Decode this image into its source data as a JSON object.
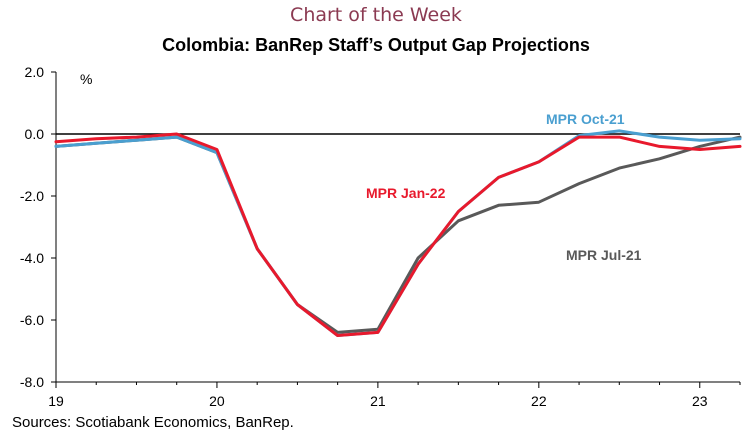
{
  "header": {
    "kicker": "Chart of the Week",
    "title": "Colombia: BanRep Staff’s Output Gap Projections"
  },
  "footer": {
    "source": "Sources: Scotiabank Economics, BanRep."
  },
  "chart_data": {
    "type": "line",
    "title": "Colombia: BanRep Staff’s Output Gap Projections",
    "ylabel": "%",
    "xlabel": "",
    "ylim": [
      -8,
      2
    ],
    "yticks": [
      2,
      0,
      -2,
      -4,
      -6,
      -8
    ],
    "ytick_labels": [
      "2.0",
      "0.0",
      "-2.0",
      "-4.0",
      "-6.0",
      "-8.0"
    ],
    "xlim": [
      2019.0,
      2023.25
    ],
    "xticks": [
      2019,
      2020,
      2021,
      2022,
      2023
    ],
    "xtick_labels": [
      "19",
      "20",
      "21",
      "22",
      "23"
    ],
    "grid": false,
    "legend": "inline labels",
    "series": [
      {
        "name": "MPR Jul-21",
        "color": "#595959",
        "x": [
          2019.0,
          2019.25,
          2019.5,
          2019.75,
          2020.0,
          2020.25,
          2020.5,
          2020.75,
          2021.0,
          2021.25,
          2021.5,
          2021.75,
          2022.0,
          2022.25,
          2022.5,
          2022.75,
          2023.0,
          2023.25
        ],
        "y": [
          -0.4,
          -0.3,
          -0.2,
          -0.1,
          -0.6,
          -3.7,
          -5.5,
          -6.4,
          -6.3,
          -4.0,
          -2.8,
          -2.3,
          -2.2,
          -1.6,
          -1.1,
          -0.8,
          -0.4,
          -0.1
        ]
      },
      {
        "name": "MPR Oct-21",
        "color": "#4a9fd0",
        "x": [
          2019.0,
          2019.25,
          2019.5,
          2019.75,
          2020.0,
          2020.25,
          2020.5,
          2020.75,
          2021.0,
          2021.25,
          2021.5,
          2021.75,
          2022.0,
          2022.25,
          2022.5,
          2022.75,
          2023.0,
          2023.25
        ],
        "y": [
          -0.4,
          -0.3,
          -0.2,
          -0.1,
          -0.6,
          -3.7,
          -5.5,
          -6.5,
          -6.4,
          -4.2,
          -2.5,
          -1.4,
          -0.9,
          -0.05,
          0.1,
          -0.1,
          -0.2,
          -0.15
        ]
      },
      {
        "name": "MPR Jan-22",
        "color": "#e8192c",
        "x": [
          2019.0,
          2019.25,
          2019.5,
          2019.75,
          2020.0,
          2020.25,
          2020.5,
          2020.75,
          2021.0,
          2021.25,
          2021.5,
          2021.75,
          2022.0,
          2022.25,
          2022.5,
          2022.75,
          2023.0,
          2023.25
        ],
        "y": [
          -0.25,
          -0.15,
          -0.1,
          0.0,
          -0.5,
          -3.7,
          -5.5,
          -6.5,
          -6.4,
          -4.2,
          -2.5,
          -1.4,
          -0.9,
          -0.1,
          -0.1,
          -0.4,
          -0.5,
          -0.4
        ]
      }
    ]
  }
}
